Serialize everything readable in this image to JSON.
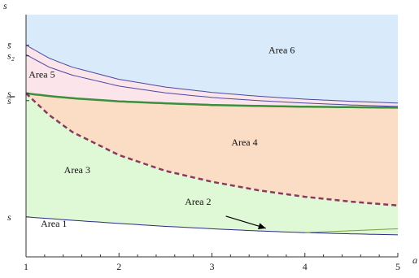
{
  "chart_data": {
    "type": "area",
    "x_axis": {
      "label": "a",
      "range": [
        1,
        5
      ],
      "ticks": [
        1,
        2,
        3,
        4,
        5
      ]
    },
    "y_axis": {
      "label": "s",
      "range": [
        0,
        1
      ],
      "tick_labels": [
        {
          "text": "s̄",
          "y": 0.874
        },
        {
          "text": "s₂",
          "y": 0.83
        },
        {
          "text": "s̲",
          "y": 0.675
        },
        {
          "text": "s̿",
          "y": 0.645
        },
        {
          "text": "s",
          "y": 0.165
        }
      ]
    },
    "curves": [
      {
        "id": "upper1",
        "color": "#4a4aa0",
        "width": 1,
        "dash": "",
        "x": [
          1,
          1.25,
          1.5,
          2,
          2.5,
          3,
          3.5,
          4,
          4.5,
          5
        ],
        "y": [
          0.874,
          0.82,
          0.783,
          0.733,
          0.701,
          0.679,
          0.663,
          0.651,
          0.642,
          0.635
        ]
      },
      {
        "id": "upper2",
        "color": "#4a4aa0",
        "width": 1,
        "dash": "",
        "x": [
          1,
          1.25,
          1.5,
          2,
          2.5,
          3,
          3.5,
          4,
          4.5,
          5
        ],
        "y": [
          0.835,
          0.783,
          0.75,
          0.705,
          0.677,
          0.658,
          0.645,
          0.635,
          0.627,
          0.621
        ]
      },
      {
        "id": "green",
        "color": "#3c8f3c",
        "width": 2.5,
        "dash": "",
        "x": [
          1,
          1.25,
          1.5,
          2,
          2.5,
          3,
          3.5,
          4,
          4.5,
          5
        ],
        "y": [
          0.675,
          0.664,
          0.655,
          0.642,
          0.634,
          0.627,
          0.623,
          0.62,
          0.618,
          0.616
        ]
      },
      {
        "id": "dashed",
        "color": "#8a3a5e",
        "width": 2.5,
        "dash": "6 4",
        "x": [
          1,
          1.25,
          1.5,
          2,
          2.5,
          3,
          3.5,
          4,
          4.5,
          5
        ],
        "y": [
          0.675,
          0.585,
          0.515,
          0.42,
          0.355,
          0.31,
          0.275,
          0.248,
          0.228,
          0.212
        ]
      },
      {
        "id": "bottom",
        "color": "#2a2a8a",
        "width": 1,
        "dash": "",
        "x": [
          1,
          1.5,
          2,
          2.5,
          3,
          3.5,
          4,
          4.5,
          5
        ],
        "y": [
          0.165,
          0.151,
          0.138,
          0.126,
          0.116,
          0.107,
          0.1,
          0.095,
          0.091
        ]
      },
      {
        "id": "lower-green",
        "color": "#7aa040",
        "width": 1,
        "dash": "",
        "x": [
          4,
          4.25,
          4.5,
          4.75,
          5
        ],
        "y": [
          0.1,
          0.104,
          0.108,
          0.112,
          0.116
        ]
      }
    ],
    "regions": [
      {
        "name": "Area 6",
        "color": "#d9ebfb",
        "top": "ymax",
        "bottom": "upper1"
      },
      {
        "name": "Area 5",
        "color": "#fbe4ea",
        "top": "upper1",
        "bottom": "green"
      },
      {
        "name": "Area 4",
        "color": "#fbdcc4",
        "top": "green",
        "bottom": "dashed"
      },
      {
        "name": "Area 3",
        "color": "#dff8d6",
        "top": "dashed",
        "bottom": "bottom"
      },
      {
        "name": "Area 1",
        "color": "#ffffff",
        "top": "bottom",
        "bottom": "ymin"
      }
    ],
    "area_labels": [
      {
        "text": "Area 6",
        "x": 3.75,
        "y": 0.84
      },
      {
        "text": "Area 5",
        "x": 1.17,
        "y": 0.74
      },
      {
        "text": "Area 4",
        "x": 3.35,
        "y": 0.46
      },
      {
        "text": "Area 3",
        "x": 1.55,
        "y": 0.345
      },
      {
        "text": "Area 2",
        "x": 2.85,
        "y": 0.215
      },
      {
        "text": "Area 1",
        "x": 1.3,
        "y": 0.125
      }
    ],
    "annotation_arrow": {
      "from": [
        3.15,
        0.168
      ],
      "to": [
        3.58,
        0.118
      ],
      "color": "#000000"
    }
  }
}
